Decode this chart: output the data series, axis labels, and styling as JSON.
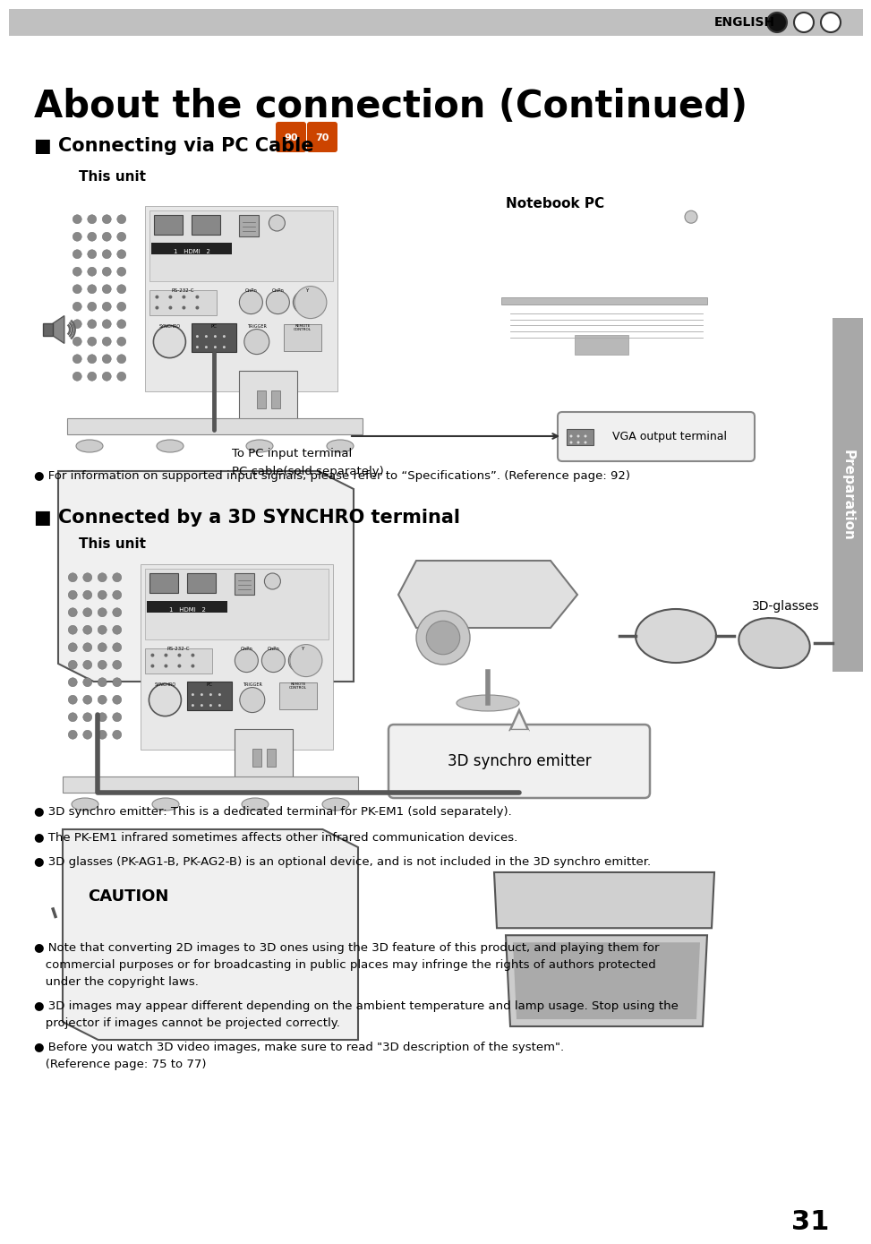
{
  "page_bg": "#ffffff",
  "header_bg": "#c0c0c0",
  "header_text": "ENGLISH",
  "title": "About the connection (Continued)",
  "sidebar_bg": "#a8a8a8",
  "sidebar_text": "Preparation",
  "section1_heading": "■ Connecting via PC Cable",
  "badge1": "90",
  "badge2": "70",
  "this_unit_label": "This unit",
  "notebook_pc_label": "Notebook PC",
  "to_pc_input_label": "To PC input terminal",
  "pc_cable_label": "PC cable(sold separately)",
  "vga_output_label": "VGA output terminal",
  "section1_bullet": "● For information on supported input signals, please refer to “Specifications”. (Reference page: 92)",
  "section2_heading": "■ Connected by a 3D SYNCHRO terminal",
  "glasses_label": "3D-glasses",
  "emitter_label": "3D synchro emitter",
  "bullet1": "● 3D synchro emitter: This is a dedicated terminal for PK-EM1 (sold separately).",
  "bullet2": "● The PK-EM1 infrared sometimes affects other infrared communication devices.",
  "bullet3": "● 3D glasses (PK-AG1-B, PK-AG2-B) is an optional device, and is not included in the 3D synchro emitter.",
  "caution_title": "CAUTION",
  "caution1a": "● Note that converting 2D images to 3D ones using the 3D feature of this product, and playing them for",
  "caution1b": "   commercial purposes or for broadcasting in public places may infringe the rights of authors protected",
  "caution1c": "   under the copyright laws.",
  "caution2a": "● 3D images may appear different depending on the ambient temperature and lamp usage. Stop using the",
  "caution2b": "   projector if images cannot be projected correctly.",
  "caution3a": "● Before you watch 3D video images, make sure to read \"3D description of the system\".",
  "caution3b": "   (Reference page: 75 to 77)",
  "page_number": "31",
  "fig_width": 9.54,
  "fig_height": 13.56,
  "dpi": 100
}
